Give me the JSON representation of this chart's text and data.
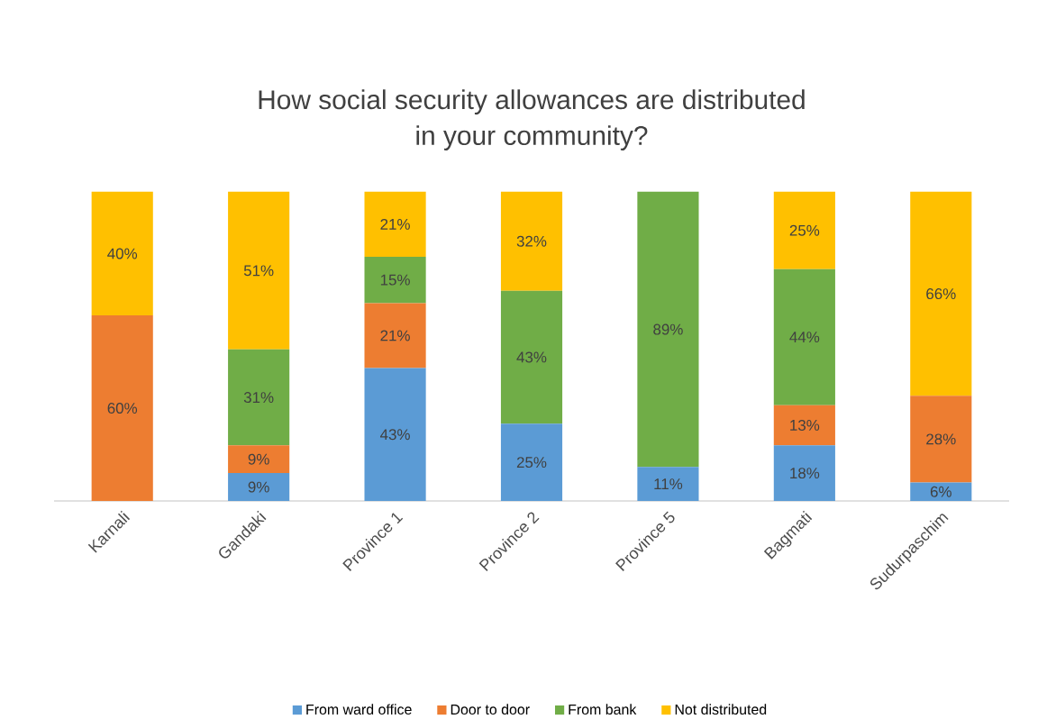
{
  "chart_data": {
    "type": "bar",
    "stacked": true,
    "title": "How social security allowances are distributed in your community?",
    "categories": [
      "Karnali",
      "Gandaki",
      "Province 1",
      "Province 2",
      "Province 5",
      "Bagmati",
      "Sudurpaschim"
    ],
    "series": [
      {
        "name": "From ward office",
        "color": "#5b9bd5",
        "values": [
          null,
          9,
          43,
          25,
          11,
          18,
          6
        ],
        "value_labels": [
          null,
          "9%",
          "43%",
          "25%",
          "11%",
          "18%",
          "6%"
        ]
      },
      {
        "name": "Door to door",
        "color": "#ed7d31",
        "values": [
          60,
          9,
          21,
          null,
          null,
          13,
          28
        ],
        "value_labels": [
          "60%",
          "9%",
          "21%",
          null,
          null,
          "13%",
          "28%"
        ]
      },
      {
        "name": "From bank",
        "color": "#70ad47",
        "values": [
          null,
          31,
          15,
          43,
          89,
          44,
          null
        ],
        "value_labels": [
          null,
          "31%",
          "15%",
          "43%",
          "89%",
          "44%",
          null
        ]
      },
      {
        "name": "Not distributed",
        "color": "#ffc000",
        "values": [
          40,
          51,
          21,
          32,
          null,
          25,
          66
        ],
        "value_labels": [
          "40%",
          "51%",
          "21%",
          "32%",
          null,
          "25%",
          "66%"
        ]
      }
    ],
    "legend": "bottom"
  }
}
